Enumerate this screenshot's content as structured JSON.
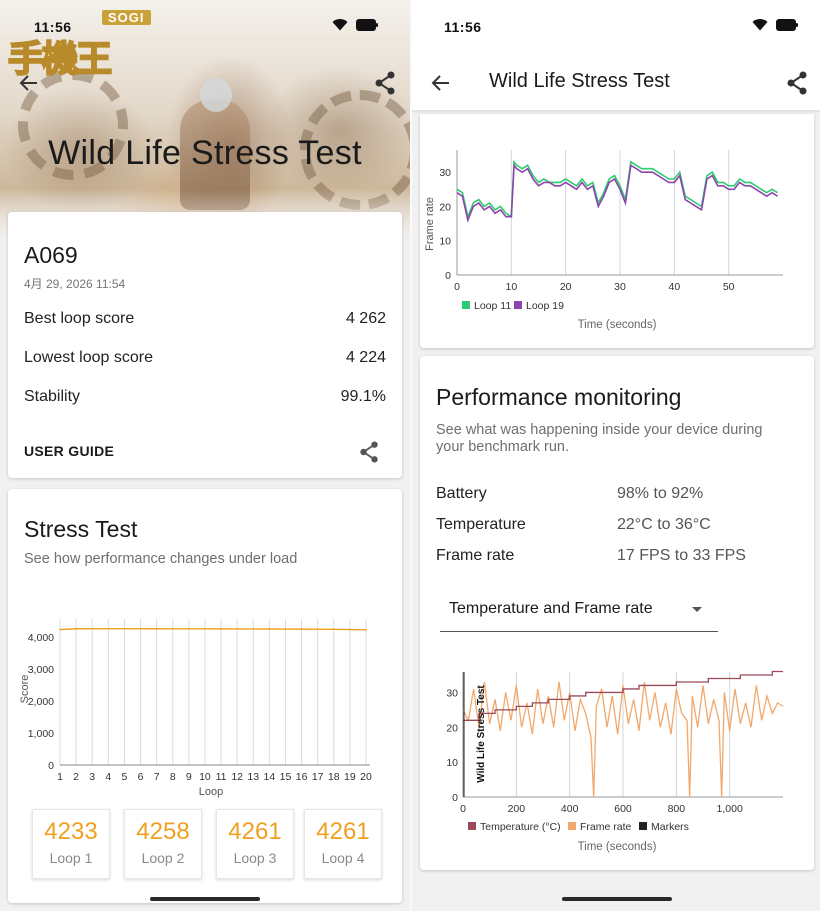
{
  "status_bar": {
    "time": "11:56"
  },
  "watermark": {
    "badge": "SOGI",
    "logo_text": "手機王"
  },
  "left": {
    "hero_title": "Wild Life Stress Test",
    "device": "A069",
    "date": "4月 29, 2026 11:54",
    "stats": [
      {
        "label": "Best loop score",
        "value": "4 262"
      },
      {
        "label": "Lowest loop score",
        "value": "4 224"
      },
      {
        "label": "Stability",
        "value": "99.1%"
      }
    ],
    "user_guide": "USER GUIDE",
    "stress": {
      "title": "Stress Test",
      "subtitle": "See how performance changes under load"
    },
    "loop_boxes": [
      {
        "score": "4233",
        "label": "Loop 1"
      },
      {
        "score": "4258",
        "label": "Loop 2"
      },
      {
        "score": "4261",
        "label": "Loop 3"
      },
      {
        "score": "4261",
        "label": "Loop 4"
      }
    ]
  },
  "right": {
    "title": "Wild Life Stress Test",
    "perf": {
      "title": "Performance monitoring",
      "subtitle_line1": "See what was happening inside your device during",
      "subtitle_line2": "your benchmark run.",
      "rows": [
        {
          "label": "Battery",
          "value": "98% to 92%"
        },
        {
          "label": "Temperature",
          "value": "22°C to 36°C"
        },
        {
          "label": "Frame rate",
          "value": "17 FPS to 33 FPS"
        }
      ],
      "dropdown": "Temperature and Frame rate"
    }
  },
  "colors": {
    "accent_orange": "#f0a020",
    "loop11": "#2ecc71",
    "loop19": "#8e44ad",
    "temperature": "#9b4a5a",
    "framerate": "#f2a86b",
    "markers": "#222222"
  },
  "chart_data": [
    {
      "type": "line",
      "xlabel": "Loop",
      "ylabel": "Score",
      "ylim": [
        0,
        4000
      ],
      "yticks": [
        "0",
        "1,000",
        "2,000",
        "3,000",
        "4,000"
      ],
      "x": [
        1,
        2,
        3,
        4,
        5,
        6,
        7,
        8,
        9,
        10,
        11,
        12,
        13,
        14,
        15,
        16,
        17,
        18,
        19,
        20
      ],
      "series": [
        {
          "values": [
            4233,
            4258,
            4261,
            4261,
            4260,
            4259,
            4258,
            4257,
            4256,
            4255,
            4254,
            4253,
            4252,
            4250,
            4248,
            4246,
            4244,
            4240,
            4232,
            4224
          ]
        }
      ],
      "grid": true
    },
    {
      "type": "line",
      "xlabel": "Time (seconds)",
      "ylabel": "Frame rate",
      "xlim": [
        0,
        60
      ],
      "ylim": [
        0,
        35
      ],
      "xticks": [
        "0",
        "10",
        "20",
        "30",
        "40",
        "50"
      ],
      "yticks": [
        "0",
        "10",
        "20",
        "30"
      ],
      "series": [
        {
          "name": "Loop 11",
          "x": [
            0,
            1,
            2,
            3,
            4,
            5,
            6,
            7,
            8,
            9,
            10,
            10.5,
            11,
            12,
            13,
            14,
            15,
            16,
            17,
            18,
            19,
            20,
            21,
            22,
            23,
            24,
            25,
            26,
            27,
            28,
            29,
            30,
            31,
            32,
            33,
            34,
            35,
            36,
            37,
            38,
            39,
            40,
            41,
            42,
            43,
            44,
            45,
            46,
            47,
            48,
            49,
            50,
            51,
            52,
            53,
            54,
            55,
            56,
            57,
            58,
            59
          ],
          "values": [
            25,
            24,
            17,
            21,
            22,
            20,
            21,
            19,
            20,
            18,
            17,
            33,
            32,
            31,
            32,
            29,
            27,
            28,
            27,
            27,
            27,
            28,
            27,
            26,
            28,
            26,
            27,
            21,
            24,
            28,
            29,
            26,
            22,
            33,
            32,
            31,
            31,
            31,
            30,
            29,
            28,
            28,
            30,
            23,
            22,
            21,
            20,
            29,
            30,
            27,
            27,
            26,
            26,
            28,
            27,
            27,
            26,
            25,
            24,
            25,
            24
          ]
        },
        {
          "name": "Loop 19",
          "x": [
            0,
            1,
            2,
            3,
            4,
            5,
            6,
            7,
            8,
            9,
            10,
            10.5,
            11,
            12,
            13,
            14,
            15,
            16,
            17,
            18,
            19,
            20,
            21,
            22,
            23,
            24,
            25,
            26,
            27,
            28,
            29,
            30,
            31,
            32,
            33,
            34,
            35,
            36,
            37,
            38,
            39,
            40,
            41,
            42,
            43,
            44,
            45,
            46,
            47,
            48,
            49,
            50,
            51,
            52,
            53,
            54,
            55,
            56,
            57,
            58,
            59
          ],
          "values": [
            24,
            23,
            16,
            20,
            21,
            19,
            20,
            18,
            19,
            17,
            17,
            32,
            31,
            30,
            31,
            28,
            26,
            27,
            27,
            26,
            26,
            27,
            26,
            25,
            27,
            25,
            26,
            20,
            23,
            27,
            28,
            25,
            21,
            32,
            31,
            30,
            30,
            30,
            29,
            28,
            27,
            27,
            29,
            22,
            21,
            20,
            19,
            28,
            29,
            26,
            26,
            25,
            25,
            27,
            26,
            26,
            25,
            24,
            23,
            24,
            23
          ]
        }
      ]
    },
    {
      "type": "line",
      "xlabel": "Time (seconds)",
      "xlim": [
        0,
        1200
      ],
      "ylim": [
        0,
        35
      ],
      "xticks": [
        "0",
        "200",
        "400",
        "600",
        "800",
        "1,000"
      ],
      "yticks": [
        "0",
        "10",
        "20",
        "30"
      ],
      "annotation": "Wild Life Stress Test",
      "series": [
        {
          "name": "Temperature (°C)",
          "x": [
            0,
            60,
            120,
            200,
            260,
            320,
            400,
            460,
            520,
            600,
            660,
            720,
            800,
            860,
            920,
            980,
            1040,
            1100,
            1160,
            1200
          ],
          "values": [
            22,
            24,
            25,
            26,
            27,
            28,
            29,
            30,
            30,
            31,
            32,
            32,
            33,
            33,
            34,
            34,
            35,
            35,
            36,
            36
          ]
        },
        {
          "name": "Frame rate",
          "x": [
            0,
            20,
            40,
            60,
            80,
            100,
            120,
            140,
            160,
            180,
            200,
            220,
            240,
            260,
            280,
            300,
            320,
            340,
            360,
            380,
            400,
            420,
            440,
            460,
            480,
            490,
            500,
            520,
            540,
            560,
            580,
            600,
            620,
            640,
            660,
            680,
            700,
            720,
            740,
            760,
            780,
            800,
            820,
            840,
            850,
            860,
            880,
            900,
            920,
            940,
            960,
            970,
            980,
            1000,
            1020,
            1040,
            1060,
            1080,
            1100,
            1120,
            1140,
            1160,
            1180,
            1200
          ],
          "values": [
            25,
            22,
            31,
            20,
            33,
            21,
            28,
            19,
            30,
            22,
            32,
            20,
            27,
            18,
            31,
            21,
            29,
            20,
            33,
            22,
            30,
            19,
            28,
            24,
            17,
            0,
            26,
            31,
            20,
            29,
            18,
            32,
            21,
            28,
            19,
            33,
            22,
            30,
            20,
            27,
            18,
            31,
            24,
            22,
            0,
            29,
            20,
            32,
            21,
            28,
            22,
            0,
            30,
            19,
            31,
            21,
            27,
            20,
            32,
            22,
            29,
            24,
            27,
            26
          ]
        },
        {
          "name": "Markers",
          "x": [],
          "values": []
        }
      ]
    }
  ]
}
